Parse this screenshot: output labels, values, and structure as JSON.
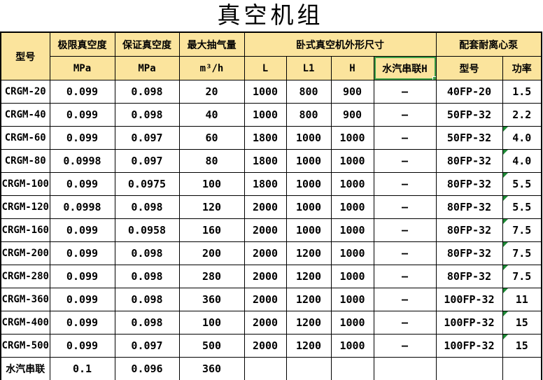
{
  "title": "真空机组",
  "colors": {
    "header_bg": "#FBE49D",
    "grid": "#000000",
    "selection": "#3FA047",
    "flag": "#1E8A36"
  },
  "table": {
    "header": {
      "col_model": "型号",
      "group_ultimate": "极限真空度",
      "group_guaranteed": "保证真空度",
      "group_max": "最大抽气量",
      "group_dims": "卧式真空机外形尺寸",
      "group_pump": "配套耐离心泵",
      "u_mpa1": "MPa",
      "u_mpa2": "MPa",
      "u_m3h": "m³/h",
      "L": "L",
      "L1": "L1",
      "H": "H",
      "steam_h": "水汽串联H",
      "pump_model": "型号",
      "power": "功率"
    },
    "row_keys": [
      "model",
      "ultimate",
      "guaranteed",
      "max",
      "L",
      "L1",
      "H",
      "steam_h",
      "pump_model",
      "power"
    ],
    "rows": [
      {
        "model": "CRGM-20",
        "ultimate": "0.099",
        "guaranteed": "0.098",
        "max": "20",
        "L": "1000",
        "L1": "800",
        "H": "900",
        "steam_h": "–",
        "pump_model": "40FP-20",
        "power": "1.5",
        "flag": false
      },
      {
        "model": "CRGM-40",
        "ultimate": "0.099",
        "guaranteed": "0.098",
        "max": "40",
        "L": "1000",
        "L1": "800",
        "H": "900",
        "steam_h": "–",
        "pump_model": "50FP-32",
        "power": "2.2",
        "flag": false
      },
      {
        "model": "CRGM-60",
        "ultimate": "0.099",
        "guaranteed": "0.097",
        "max": "60",
        "L": "1800",
        "L1": "1000",
        "H": "1000",
        "steam_h": "–",
        "pump_model": "50FP-32",
        "power": "4.0",
        "flag": true
      },
      {
        "model": "CRGM-80",
        "ultimate": "0.0998",
        "guaranteed": "0.097",
        "max": "80",
        "L": "1800",
        "L1": "1000",
        "H": "1000",
        "steam_h": "–",
        "pump_model": "80FP-32",
        "power": "4.0",
        "flag": true
      },
      {
        "model": "CRGM-100",
        "ultimate": "0.099",
        "guaranteed": "0.0975",
        "max": "100",
        "L": "1800",
        "L1": "1000",
        "H": "1000",
        "steam_h": "–",
        "pump_model": "80FP-32",
        "power": "5.5",
        "flag": true
      },
      {
        "model": "CRGM-120",
        "ultimate": "0.0998",
        "guaranteed": "0.098",
        "max": "120",
        "L": "2000",
        "L1": "1000",
        "H": "1000",
        "steam_h": "–",
        "pump_model": "80FP-32",
        "power": "5.5",
        "flag": true
      },
      {
        "model": "CRGM-160",
        "ultimate": "0.099",
        "guaranteed": "0.0958",
        "max": "160",
        "L": "2000",
        "L1": "1000",
        "H": "1000",
        "steam_h": "–",
        "pump_model": "80FP-32",
        "power": "7.5",
        "flag": true
      },
      {
        "model": "CRGM-200",
        "ultimate": "0.099",
        "guaranteed": "0.098",
        "max": "200",
        "L": "2000",
        "L1": "1200",
        "H": "1000",
        "steam_h": "–",
        "pump_model": "80FP-32",
        "power": "7.5",
        "flag": true
      },
      {
        "model": "CRGM-280",
        "ultimate": "0.099",
        "guaranteed": "0.098",
        "max": "280",
        "L": "2000",
        "L1": "1200",
        "H": "1000",
        "steam_h": "–",
        "pump_model": "80FP-32",
        "power": "7.5",
        "flag": true
      },
      {
        "model": "CRGM-360",
        "ultimate": "0.099",
        "guaranteed": "0.098",
        "max": "360",
        "L": "2000",
        "L1": "1200",
        "H": "1000",
        "steam_h": "–",
        "pump_model": "100FP-32",
        "power": "11",
        "flag": true
      },
      {
        "model": "CRGM-400",
        "ultimate": "0.099",
        "guaranteed": "0.098",
        "max": "100",
        "L": "2000",
        "L1": "1200",
        "H": "1000",
        "steam_h": "–",
        "pump_model": "100FP-32",
        "power": "15",
        "flag": true
      },
      {
        "model": "CRGM-500",
        "ultimate": "0.099",
        "guaranteed": "0.097",
        "max": "500",
        "L": "2000",
        "L1": "1200",
        "H": "1000",
        "steam_h": "–",
        "pump_model": "100FP-32",
        "power": "15",
        "flag": true
      },
      {
        "model": "水汽串联",
        "ultimate": "0.1",
        "guaranteed": "0.096",
        "max": "360",
        "L": "",
        "L1": "",
        "H": "",
        "steam_h": "",
        "pump_model": "",
        "power": "",
        "flag": false
      }
    ]
  }
}
